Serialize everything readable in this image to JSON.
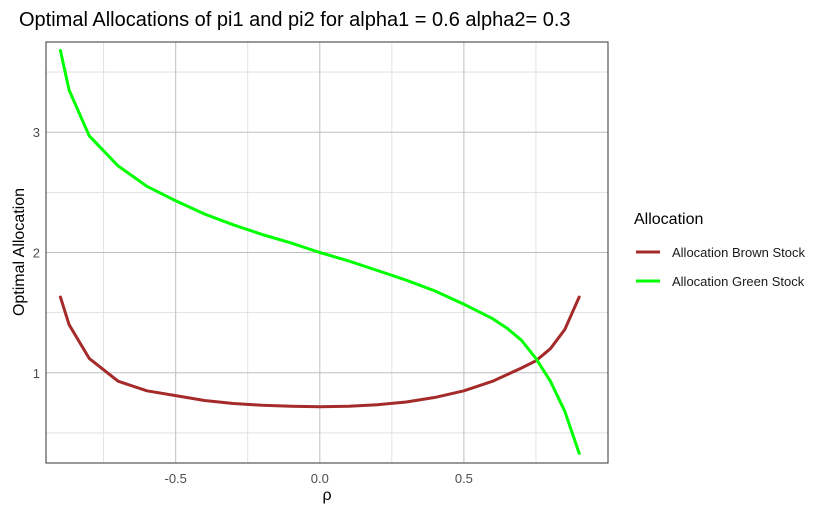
{
  "chart_data": {
    "type": "line",
    "title": "Optimal Allocations of pi1 and pi2 for alpha1 = 0.6 alpha2= 0.3",
    "xlabel": "ρ",
    "ylabel": "Optimal Allocation",
    "xlim": [
      -0.95,
      1.0
    ],
    "ylim": [
      0.25,
      3.75
    ],
    "x_ticks": [
      -0.5,
      0.0,
      0.5
    ],
    "x_tick_labels": [
      "-0.5",
      "0.0",
      "0.5"
    ],
    "y_ticks": [
      1,
      2,
      3
    ],
    "y_tick_labels": [
      "1",
      "2",
      "3"
    ],
    "grid": true,
    "legend": {
      "title": "Allocation",
      "position": "right"
    },
    "series": [
      {
        "name": "Allocation Brown Stock",
        "color": "#A52A2A",
        "points": [
          [
            -0.9,
            1.63
          ],
          [
            -0.87,
            1.4
          ],
          [
            -0.8,
            1.12
          ],
          [
            -0.7,
            0.93
          ],
          [
            -0.6,
            0.85
          ],
          [
            -0.5,
            0.81
          ],
          [
            -0.4,
            0.77
          ],
          [
            -0.3,
            0.745
          ],
          [
            -0.2,
            0.73
          ],
          [
            -0.1,
            0.722
          ],
          [
            0.0,
            0.718
          ],
          [
            0.1,
            0.722
          ],
          [
            0.2,
            0.735
          ],
          [
            0.3,
            0.757
          ],
          [
            0.4,
            0.795
          ],
          [
            0.5,
            0.85
          ],
          [
            0.6,
            0.93
          ],
          [
            0.7,
            1.04
          ],
          [
            0.75,
            1.1
          ],
          [
            0.8,
            1.2
          ],
          [
            0.85,
            1.36
          ],
          [
            0.9,
            1.63
          ]
        ]
      },
      {
        "name": "Allocation Green Stock",
        "color": "#00FF00",
        "points": [
          [
            -0.9,
            3.68
          ],
          [
            -0.87,
            3.35
          ],
          [
            -0.8,
            2.97
          ],
          [
            -0.7,
            2.72
          ],
          [
            -0.6,
            2.55
          ],
          [
            -0.5,
            2.43
          ],
          [
            -0.4,
            2.32
          ],
          [
            -0.3,
            2.23
          ],
          [
            -0.2,
            2.15
          ],
          [
            -0.1,
            2.08
          ],
          [
            0.0,
            2.0
          ],
          [
            0.1,
            1.93
          ],
          [
            0.2,
            1.85
          ],
          [
            0.3,
            1.77
          ],
          [
            0.4,
            1.68
          ],
          [
            0.5,
            1.57
          ],
          [
            0.6,
            1.45
          ],
          [
            0.65,
            1.37
          ],
          [
            0.7,
            1.27
          ],
          [
            0.75,
            1.12
          ],
          [
            0.8,
            0.93
          ],
          [
            0.85,
            0.68
          ],
          [
            0.9,
            0.33
          ]
        ]
      }
    ]
  }
}
